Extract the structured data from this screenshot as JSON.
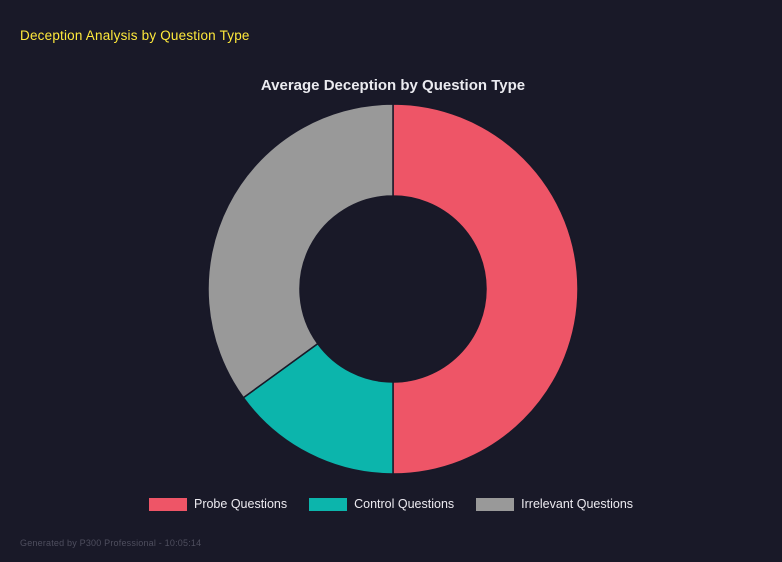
{
  "page": {
    "header_title": "Deception Analysis by Question Type",
    "footer_note": "Generated by P300 Professional - 10:05:14"
  },
  "colors": {
    "background": "#191928",
    "header_accent": "#ffe93b",
    "title_text": "#ebebf0",
    "legend_text": "#eceaf0",
    "footer_text": "#4e4e5e"
  },
  "chart_data": {
    "type": "pie",
    "donut": true,
    "title": "Average Deception by Question Type",
    "categories": [
      "Probe Questions",
      "Control Questions",
      "Irrelevant Questions"
    ],
    "values": [
      50,
      15,
      35
    ],
    "unit": "percent_share",
    "colors": [
      "#ee5567",
      "#0cb5ac",
      "#999999"
    ],
    "start_angle_deg": 0,
    "inner_radius_ratio": 0.5,
    "legend_position": "bottom",
    "grid": false
  }
}
